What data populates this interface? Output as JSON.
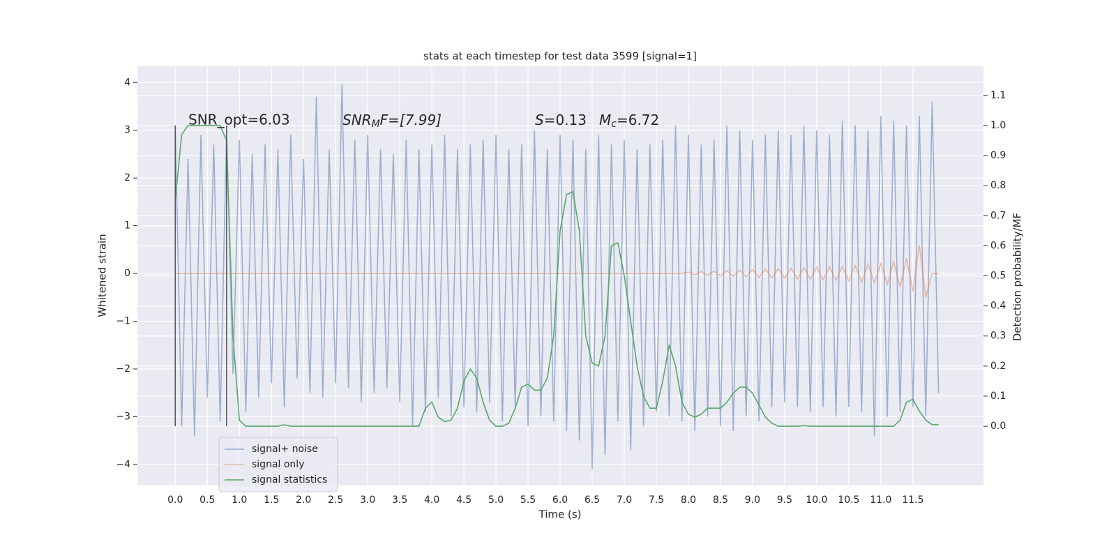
{
  "chart_data": {
    "type": "line",
    "title": "stats at each timestep for test data 3599 [signal=1]",
    "xlabel": "Time (s)",
    "ylabel": "Whitened strain",
    "y2label": "Detection probability/MF",
    "xlim": [
      -0.59,
      12.6
    ],
    "ylim": [
      -4.44,
      4.34
    ],
    "y2lim": [
      -0.197,
      1.197
    ],
    "xticks": [
      {
        "value": 0,
        "label": "0.0"
      },
      {
        "value": 0.5,
        "label": "0.5"
      },
      {
        "value": 1,
        "label": "1.0"
      },
      {
        "value": 1.5,
        "label": "1.5"
      },
      {
        "value": 2,
        "label": "2.0"
      },
      {
        "value": 2.5,
        "label": "2.5"
      },
      {
        "value": 3,
        "label": "3.0"
      },
      {
        "value": 3.5,
        "label": "3.5"
      },
      {
        "value": 4,
        "label": "4.0"
      },
      {
        "value": 4.5,
        "label": "4.5"
      },
      {
        "value": 5,
        "label": "5.0"
      },
      {
        "value": 5.5,
        "label": "5.5"
      },
      {
        "value": 6,
        "label": "6.0"
      },
      {
        "value": 6.5,
        "label": "6.5"
      },
      {
        "value": 7,
        "label": "7.0"
      },
      {
        "value": 7.5,
        "label": "7.5"
      },
      {
        "value": 8,
        "label": "8.0"
      },
      {
        "value": 8.5,
        "label": "8.5"
      },
      {
        "value": 9,
        "label": "9.0"
      },
      {
        "value": 9.5,
        "label": "9.5"
      },
      {
        "value": 10,
        "label": "10.0"
      },
      {
        "value": 10.5,
        "label": "10.5"
      },
      {
        "value": 11,
        "label": "11.0"
      },
      {
        "value": 11.5,
        "label": "11.5"
      }
    ],
    "yticks": [
      {
        "value": -4,
        "label": "−4"
      },
      {
        "value": -3,
        "label": "−3"
      },
      {
        "value": -2,
        "label": "−2"
      },
      {
        "value": -1,
        "label": "−1"
      },
      0,
      1,
      2,
      3,
      4
    ],
    "y2ticks": [
      {
        "value": 0,
        "label": "0.0"
      },
      {
        "value": 0.1,
        "label": "0.1"
      },
      {
        "value": 0.2,
        "label": "0.2"
      },
      {
        "value": 0.3,
        "label": "0.3"
      },
      {
        "value": 0.4,
        "label": "0.4"
      },
      {
        "value": 0.5,
        "label": "0.5"
      },
      {
        "value": 0.6,
        "label": "0.6"
      },
      {
        "value": 0.7,
        "label": "0.7"
      },
      {
        "value": 0.8,
        "label": "0.8"
      },
      {
        "value": 0.9,
        "label": "0.9"
      },
      {
        "value": 1,
        "label": "1.0"
      },
      {
        "value": 1.1,
        "label": "1.1"
      }
    ],
    "grid": true,
    "legend": "lower left",
    "x": [
      0,
      0.1,
      0.2,
      0.3,
      0.4,
      0.5,
      0.6,
      0.7,
      0.8,
      0.9,
      1,
      1.1,
      1.2,
      1.3,
      1.4,
      1.5,
      1.6,
      1.7,
      1.8,
      1.9,
      2,
      2.1,
      2.2,
      2.3,
      2.4,
      2.5,
      2.6,
      2.7,
      2.8,
      2.9,
      3,
      3.1,
      3.2,
      3.3,
      3.4,
      3.5,
      3.6,
      3.7,
      3.8,
      3.9,
      4,
      4.1,
      4.2,
      4.3,
      4.4,
      4.5,
      4.6,
      4.7,
      4.8,
      4.9,
      5,
      5.1,
      5.2,
      5.3,
      5.4,
      5.5,
      5.6,
      5.7,
      5.8,
      5.9,
      6,
      6.1,
      6.2,
      6.3,
      6.4,
      6.5,
      6.6,
      6.7,
      6.8,
      6.9,
      7,
      7.1,
      7.2,
      7.3,
      7.4,
      7.5,
      7.6,
      7.7,
      7.8,
      7.9,
      8,
      8.1,
      8.2,
      8.3,
      8.4,
      8.5,
      8.6,
      8.7,
      8.8,
      8.9,
      9,
      9.1,
      9.2,
      9.3,
      9.4,
      9.5,
      9.6,
      9.7,
      9.8,
      9.9,
      10,
      10.1,
      10.2,
      10.3,
      10.4,
      10.5,
      10.6,
      10.7,
      10.8,
      10.9,
      11,
      11.1,
      11.2,
      11.3,
      11.4,
      11.5,
      11.6,
      11.7,
      11.8,
      11.9
    ],
    "series": [
      {
        "name": "signal+ noise",
        "color": "#4c72b0",
        "alpha": 0.5,
        "axis": "y",
        "values": [
          3.1,
          -3.2,
          2.4,
          -3.4,
          2.9,
          -2.6,
          2.7,
          -3.1,
          3.0,
          -2.1,
          2.8,
          -2.9,
          2.5,
          -2.6,
          2.7,
          -2.3,
          2.6,
          -2.8,
          2.9,
          -2.2,
          2.4,
          -2.5,
          3.7,
          -2.6,
          2.6,
          -2.3,
          3.96,
          -2.4,
          2.8,
          -2.7,
          2.9,
          -2.5,
          2.6,
          -2.4,
          2.5,
          -2.7,
          2.8,
          -3.2,
          2.6,
          -2.9,
          2.7,
          -2.6,
          2.9,
          -3.0,
          2.6,
          -2.8,
          2.7,
          -2.9,
          2.8,
          -2.7,
          2.9,
          -3.1,
          2.6,
          -2.8,
          2.7,
          -3.2,
          3.0,
          -3.0,
          2.6,
          -3.1,
          2.9,
          -3.3,
          2.8,
          -3.5,
          2.6,
          -4.1,
          2.9,
          -3.8,
          2.7,
          -3.1,
          2.8,
          -3.7,
          2.6,
          -3.2,
          2.7,
          -2.9,
          2.8,
          -3.0,
          3.1,
          -3.1,
          2.9,
          -3.3,
          2.7,
          -3.0,
          2.8,
          -3.2,
          3.1,
          -3.3,
          3.0,
          -3.0,
          2.8,
          -3.1,
          2.9,
          -2.8,
          3.0,
          -2.7,
          2.9,
          -2.8,
          3.1,
          -2.9,
          3.0,
          -2.8,
          2.9,
          -3.0,
          3.2,
          -2.8,
          3.1,
          -2.9,
          3.0,
          -3.4,
          3.3,
          -3.0,
          3.2,
          -2.9,
          3.1,
          -2.8,
          3.3,
          -3.0,
          3.6,
          -2.5
        ]
      },
      {
        "name": "signal only",
        "color": "#dd8452",
        "alpha": 0.5,
        "axis": "y",
        "values": [
          0,
          0,
          0,
          0,
          0,
          0,
          0,
          0,
          0,
          0,
          0,
          0,
          0,
          0,
          0,
          0,
          0,
          0,
          0,
          0,
          0,
          0,
          0,
          0,
          0,
          0,
          0,
          0,
          0,
          0,
          0,
          0,
          0,
          0,
          0,
          0,
          0,
          0,
          0,
          0,
          0,
          0,
          0,
          0,
          0,
          0,
          0,
          0,
          0,
          0,
          0,
          0,
          0,
          0,
          0,
          0,
          0,
          0,
          0,
          0,
          0,
          0,
          0,
          0,
          0,
          0,
          0,
          0,
          0,
          0,
          0,
          0,
          0,
          0,
          0,
          0,
          0,
          0,
          0,
          0,
          0.03,
          -0.03,
          0.04,
          -0.04,
          0.05,
          -0.05,
          0.06,
          -0.06,
          0.07,
          -0.07,
          0.08,
          -0.08,
          0.09,
          -0.09,
          0.1,
          -0.1,
          0.11,
          -0.11,
          0.12,
          -0.12,
          0.13,
          -0.13,
          0.14,
          -0.14,
          0.15,
          -0.16,
          0.17,
          -0.18,
          0.19,
          -0.2,
          0.21,
          -0.23,
          0.25,
          -0.28,
          0.32,
          -0.38,
          0.6,
          -0.5,
          0,
          0
        ]
      },
      {
        "name": "signal statistics",
        "color": "#55a868",
        "alpha": 1,
        "axis": "y2",
        "values": [
          0.75,
          0.97,
          1.0,
          1.0,
          1.0,
          1.0,
          1.0,
          1.0,
          0.95,
          0.3,
          0.02,
          0,
          0,
          0,
          0,
          0,
          0,
          0.005,
          0,
          0,
          0,
          0,
          0,
          0,
          0,
          0,
          0,
          0,
          0,
          0,
          0,
          0,
          0,
          0,
          0,
          0,
          0,
          0,
          0,
          0.06,
          0.08,
          0.03,
          0.015,
          0.02,
          0.06,
          0.15,
          0.19,
          0.16,
          0.08,
          0.02,
          0,
          0,
          0.01,
          0.06,
          0.13,
          0.14,
          0.12,
          0.12,
          0.16,
          0.3,
          0.65,
          0.77,
          0.78,
          0.65,
          0.3,
          0.21,
          0.2,
          0.3,
          0.6,
          0.61,
          0.5,
          0.35,
          0.2,
          0.1,
          0.06,
          0.06,
          0.15,
          0.27,
          0.2,
          0.08,
          0.04,
          0.03,
          0.04,
          0.06,
          0.06,
          0.06,
          0.08,
          0.11,
          0.13,
          0.13,
          0.11,
          0.07,
          0.03,
          0.01,
          0,
          0,
          0,
          0,
          0.002,
          0,
          0,
          0,
          0,
          0,
          0,
          0,
          0,
          0,
          0,
          0,
          0,
          0,
          0,
          0.02,
          0.08,
          0.09,
          0.05,
          0.02,
          0.005,
          0.005
        ]
      }
    ],
    "vlines": {
      "x": [
        0,
        0.8
      ],
      "ymin": -3.2,
      "ymax": 3.1,
      "color": "#555555"
    },
    "annotations": {
      "snr_opt": "SNR_opt=6.03",
      "snr_mf": [
        "SNR",
        "M",
        "F=[7.99]"
      ],
      "stats": [
        "S",
        "=0.13",
        "M",
        "c",
        "=6.72"
      ]
    }
  }
}
